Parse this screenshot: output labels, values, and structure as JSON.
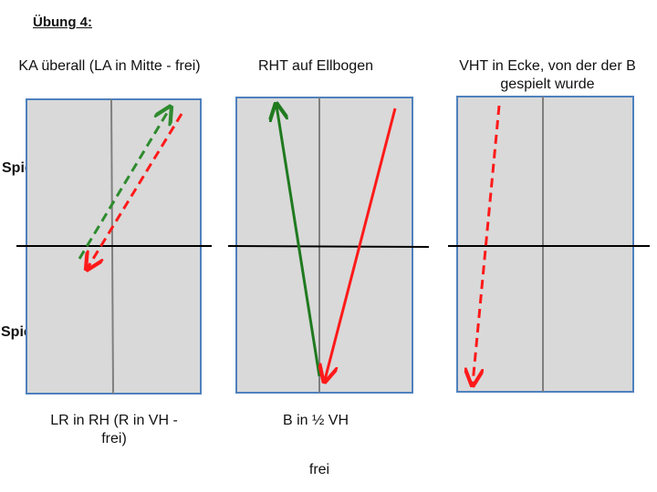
{
  "title": "Übung 4:",
  "players": {
    "a": "Spieler A",
    "b": "Spieler B"
  },
  "panels": [
    {
      "caption_top": "KA überall (LA in Mitte - frei)",
      "caption_bottom": "LR in RH (R in VH - frei)"
    },
    {
      "caption_top": "RHT auf Ellbogen",
      "caption_bottom": "B in ½ VH"
    },
    {
      "caption_top": "VHT in Ecke, von der der B gespielt wurde",
      "caption_bottom": ""
    }
  ],
  "footer": "frei",
  "colors": {
    "table_fill": "#d9d9d9",
    "table_border": "#4f81bd",
    "center_line": "#7f7f7f",
    "net": "#000000",
    "green": "#1f7a1f",
    "red": "#ff1a1a",
    "dashed_green": "#2e8b2e"
  },
  "arrows": [
    {
      "panel": 1,
      "color": "dashed_green",
      "style": "dashed",
      "direction": "from Spieler A side left-center to top-right"
    },
    {
      "panel": 1,
      "color": "red",
      "style": "dashed",
      "direction": "from top-right down to left-center"
    },
    {
      "panel": 2,
      "color": "green",
      "style": "solid",
      "direction": "from bottom center up to top-left"
    },
    {
      "panel": 2,
      "color": "red",
      "style": "solid",
      "direction": "from top-right down to bottom center"
    },
    {
      "panel": 3,
      "color": "red",
      "style": "dashed",
      "direction": "from top-left down to bottom-left"
    }
  ]
}
